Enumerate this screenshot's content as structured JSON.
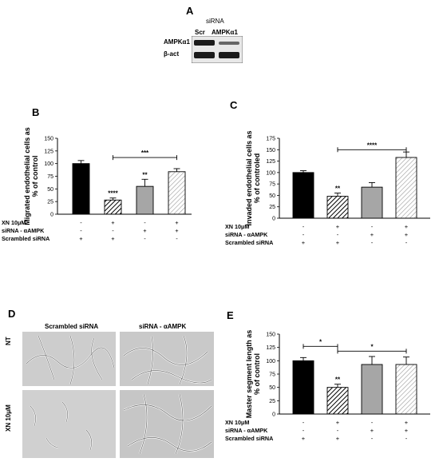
{
  "panelA": {
    "letter": "A",
    "header": "siRNA",
    "lanes": [
      "Scr",
      "AMPKα1"
    ],
    "rows": [
      "AMPKα1",
      "β-act"
    ]
  },
  "panelB": {
    "letter": "B"
  },
  "panelC": {
    "letter": "C"
  },
  "panelD": {
    "letter": "D",
    "col_labels": [
      "Scrambled siRNA",
      "siRNA - αAMPK"
    ],
    "row_labels": [
      "NT",
      "XN 10μM"
    ]
  },
  "panelE": {
    "letter": "E"
  },
  "conditions": {
    "labels": [
      "XN 10μM",
      "siRNA - αAMPK",
      "Scrambled siRNA"
    ],
    "signs": [
      [
        "-",
        "+",
        "-",
        "+"
      ],
      [
        "-",
        "-",
        "+",
        "+"
      ],
      [
        "+",
        "+",
        "-",
        "-"
      ]
    ]
  },
  "colors": {
    "bar1": "#000000",
    "bar3": "#a6a6a6",
    "hatch": "#000000",
    "hatch_light": "#999999"
  },
  "chart_data": [
    {
      "id": "B",
      "type": "bar",
      "categories": [
        "1",
        "2",
        "3",
        "4"
      ],
      "values": [
        100,
        28,
        55,
        84
      ],
      "errors": [
        6,
        4,
        14,
        6
      ],
      "ylabel": "Migrated endothelial cells as % of control",
      "ylim": [
        0,
        150
      ],
      "yticks": [
        0,
        25,
        50,
        75,
        100,
        125,
        150
      ],
      "bar_labels": [
        "",
        "****",
        "**",
        ""
      ],
      "brackets": [
        {
          "from": 1,
          "to": 3,
          "label": "***"
        }
      ]
    },
    {
      "id": "C",
      "type": "bar",
      "categories": [
        "1",
        "2",
        "3",
        "4"
      ],
      "values": [
        100,
        48,
        68,
        133
      ],
      "errors": [
        4,
        7,
        10,
        12
      ],
      "ylabel": "Invaded endothelial cells as % of controled",
      "ylim": [
        0,
        175
      ],
      "yticks": [
        0,
        25,
        50,
        75,
        100,
        125,
        150,
        175
      ],
      "bar_labels": [
        "",
        "**",
        "",
        ""
      ],
      "brackets": [
        {
          "from": 1,
          "to": 3,
          "label": "****"
        }
      ]
    },
    {
      "id": "E",
      "type": "bar",
      "categories": [
        "1",
        "2",
        "3",
        "4"
      ],
      "values": [
        100,
        50,
        93,
        93
      ],
      "errors": [
        6,
        6,
        15,
        14
      ],
      "ylabel": "Master segment length as % of control",
      "ylim": [
        0,
        150
      ],
      "yticks": [
        0,
        25,
        50,
        75,
        100,
        125,
        150
      ],
      "bar_labels": [
        "",
        "**",
        "",
        ""
      ],
      "brackets": [
        {
          "from": 0,
          "to": 1,
          "label": "*"
        },
        {
          "from": 1,
          "to": 3,
          "label": "*"
        }
      ]
    }
  ]
}
